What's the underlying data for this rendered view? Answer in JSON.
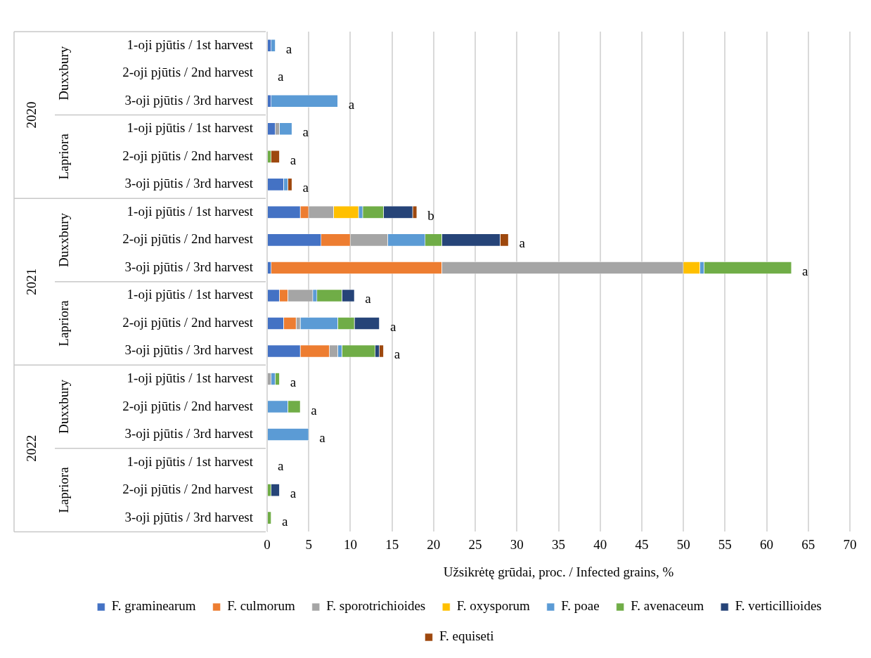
{
  "chart_data": {
    "type": "bar",
    "orientation": "horizontal",
    "stacked": true,
    "xlabel": "Užsikrėtę grūdai, proc. / Infected grains, %",
    "categories": [
      "1-oji pjūtis / 1st harvest",
      "2-oji pjūtis / 2nd harvest",
      "3-oji pjūtis / 3rd harvest",
      "1-oji pjūtis / 1st harvest",
      "2-oji pjūtis / 2nd harvest",
      "3-oji pjūtis / 3rd harvest",
      "1-oji pjūtis / 1st harvest",
      "2-oji pjūtis / 2nd harvest",
      "3-oji pjūtis / 3rd harvest",
      "1-oji pjūtis / 1st harvest",
      "2-oji pjūtis / 2nd harvest",
      "3-oji pjūtis / 3rd harvest",
      "1-oji pjūtis / 1st harvest",
      "2-oji pjūtis / 2nd harvest",
      "3-oji pjūtis / 3rd harvest",
      "1-oji pjūtis / 1st harvest",
      "2-oji pjūtis / 2nd harvest",
      "3-oji pjūtis / 3rd harvest"
    ],
    "series": [
      {
        "name": "F. graminearum",
        "color": "#4472c4",
        "values": [
          0.5,
          0,
          0.5,
          1,
          0,
          2,
          4,
          6.5,
          0.5,
          1.5,
          2,
          4,
          0,
          0,
          0,
          0,
          0,
          0
        ]
      },
      {
        "name": "F. culmorum",
        "color": "#ed7d31",
        "values": [
          0,
          0,
          0,
          0,
          0,
          0,
          1,
          3.5,
          20.5,
          1,
          1.5,
          3.5,
          0,
          0,
          0,
          0,
          0,
          0
        ]
      },
      {
        "name": "F. sporotrichioides",
        "color": "#a5a5a5",
        "values": [
          0,
          0,
          0,
          0.5,
          0,
          0,
          3,
          4.5,
          29,
          3,
          0.5,
          1,
          0.5,
          0,
          0,
          0,
          0,
          0
        ]
      },
      {
        "name": "F. oxysporum",
        "color": "#ffc000",
        "values": [
          0,
          0,
          0,
          0,
          0,
          0,
          3,
          0,
          2,
          0,
          0,
          0,
          0,
          0,
          0,
          0,
          0,
          0
        ]
      },
      {
        "name": "F. poae",
        "color": "#5b9bd5",
        "values": [
          0.5,
          0,
          8,
          1.5,
          0,
          0.5,
          0.5,
          4.5,
          0.5,
          0.5,
          4.5,
          0.5,
          0.5,
          2.5,
          5,
          0,
          0,
          0
        ]
      },
      {
        "name": "F. avenaceum",
        "color": "#70ad47",
        "values": [
          0,
          0,
          0,
          0,
          0.5,
          0,
          2.5,
          2,
          10.5,
          3,
          2,
          4,
          0.5,
          1.5,
          0,
          0,
          0.5,
          0.5
        ]
      },
      {
        "name": "F. verticillioides",
        "color": "#264478",
        "values": [
          0,
          0,
          0,
          0,
          0,
          0,
          3.5,
          7,
          0,
          1.5,
          3,
          0.5,
          0,
          0,
          0,
          0,
          1,
          0
        ]
      },
      {
        "name": "F. equiseti",
        "color": "#9e480e",
        "values": [
          0,
          0,
          0,
          0,
          1,
          0.5,
          0.5,
          1,
          0,
          0,
          0,
          0.5,
          0,
          0,
          0,
          0,
          0,
          0
        ]
      }
    ],
    "totals": [
      "a",
      "a",
      "a",
      "a",
      "a",
      "a",
      "b",
      "a",
      "a",
      "a",
      "a",
      "a",
      "a",
      "a",
      "a",
      "a",
      "a",
      "a"
    ],
    "annotations": [
      "2020",
      "Duxxbury",
      "Lapriora",
      "2021",
      "Duxxbury",
      "Lapriora",
      "2022",
      "Duxxbury",
      "Lapriora"
    ],
    "xlim": [
      0,
      70
    ],
    "xticks": [
      0,
      5,
      10,
      15,
      20,
      25,
      30,
      35,
      40,
      45,
      50,
      55,
      60,
      65,
      70
    ],
    "grid": "x",
    "legend": "bottom"
  }
}
